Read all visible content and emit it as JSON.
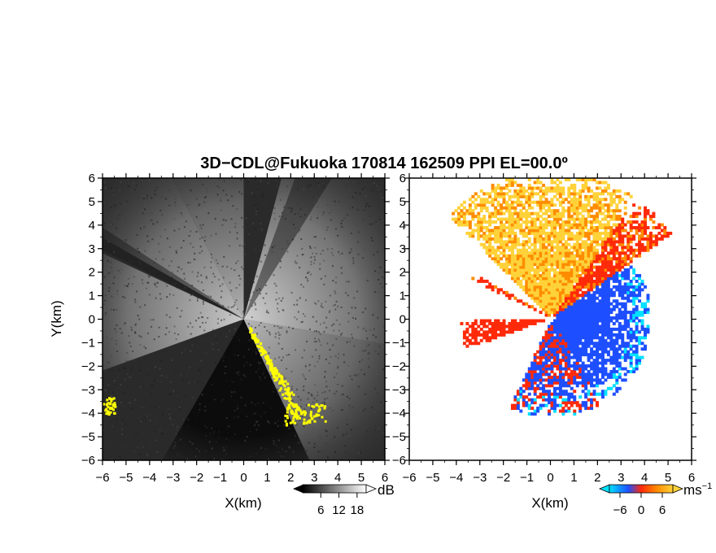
{
  "title": "3D−CDL@Fukuoka 170814 162509 PPI EL=00.0º",
  "colors": {
    "background": "#ffffff",
    "dark_base": "#2a2a2a",
    "highlight_yellow": "#ffff00",
    "vel_blue": "#1e4fff",
    "vel_cyan": "#00e0ff",
    "vel_red": "#ff2a0a",
    "vel_orange": "#ff8c00",
    "vel_yellow": "#ffd23a"
  },
  "chart_data": [
    {
      "type": "heatmap",
      "name": "reflectivity-ppi",
      "xlabel": "X(km)",
      "ylabel": "Y(km)",
      "xlim": [
        -6,
        6
      ],
      "ylim": [
        -6,
        6
      ],
      "x_ticks": [
        -6,
        -5,
        -4,
        -3,
        -2,
        -1,
        0,
        1,
        2,
        3,
        4,
        5,
        6
      ],
      "y_ticks": [
        6,
        5,
        4,
        3,
        2,
        1,
        0,
        -1,
        -2,
        -3,
        -4,
        -5,
        -6
      ],
      "x_tick_labels": [
        "−6",
        "−5",
        "−4",
        "−3",
        "−2",
        "−1",
        "0",
        "1",
        "2",
        "3",
        "4",
        "5",
        "6"
      ],
      "y_tick_labels": [
        "6",
        "5",
        "4",
        "3",
        "2",
        "1",
        "0",
        "−1",
        "−2",
        "−3",
        "−4",
        "−5",
        "−6"
      ],
      "colormap": "grayscale",
      "colorbar": {
        "unit": "dB",
        "ticks": [
          6,
          12,
          18
        ],
        "tick_labels": [
          "6",
          "12",
          "18"
        ],
        "extend": "both"
      },
      "sectors": [
        {
          "az_start": 15,
          "az_end": 100,
          "level": 0.82,
          "note": "bright north-east sector"
        },
        {
          "az_start": 100,
          "az_end": 155,
          "level": 0.72
        },
        {
          "az_start": 155,
          "az_end": 210,
          "level": 0.05,
          "note": "dark blocked sector"
        },
        {
          "az_start": 250,
          "az_end": 295,
          "level": 0.8
        },
        {
          "az_start": 300,
          "az_end": 333,
          "level": 0.75
        },
        {
          "az_start": 333,
          "az_end": 360,
          "level": 0.7
        }
      ],
      "masked_regions": "yellow pixels along the south-east sector edge and at the west edge"
    },
    {
      "type": "heatmap",
      "name": "doppler-velocity-ppi",
      "xlabel": "X(km)",
      "ylabel": "",
      "xlim": [
        -6,
        6
      ],
      "ylim": [
        -6,
        6
      ],
      "x_ticks": [
        -6,
        -5,
        -4,
        -3,
        -2,
        -1,
        0,
        1,
        2,
        3,
        4,
        5,
        6
      ],
      "x_tick_labels": [
        "−6",
        "−5",
        "−4",
        "−3",
        "−2",
        "−1",
        "0",
        "1",
        "2",
        "3",
        "4",
        "5",
        "6"
      ],
      "y_ticks": [
        6,
        5,
        4,
        3,
        2,
        1,
        0,
        -1,
        -2,
        -3,
        -4,
        -5,
        -6
      ],
      "colormap": "blue-cyan-red-orange-yellow",
      "colorbar": {
        "unit": "ms",
        "unit_exponent": "−1",
        "ticks": [
          -6,
          0,
          6
        ],
        "tick_labels": [
          "−6",
          "0",
          "6"
        ],
        "extend": "both"
      },
      "sectors": [
        {
          "az_start": -45,
          "az_end": 35,
          "value": 3.5,
          "color": "yellow-orange"
        },
        {
          "az_start": 35,
          "az_end": 55,
          "value": 1.5,
          "color": "red-orange"
        },
        {
          "az_start": 55,
          "az_end": 150,
          "value": -3.5,
          "color": "blue"
        },
        {
          "az_start": 150,
          "az_end": 205,
          "value": -1.5,
          "color": "blue-red mix"
        },
        {
          "az_start": 250,
          "az_end": 268,
          "value": 0.8,
          "color": "red-orange"
        },
        {
          "az_start": 295,
          "az_end": 300,
          "value": 1.0,
          "color": "orange"
        }
      ]
    }
  ]
}
